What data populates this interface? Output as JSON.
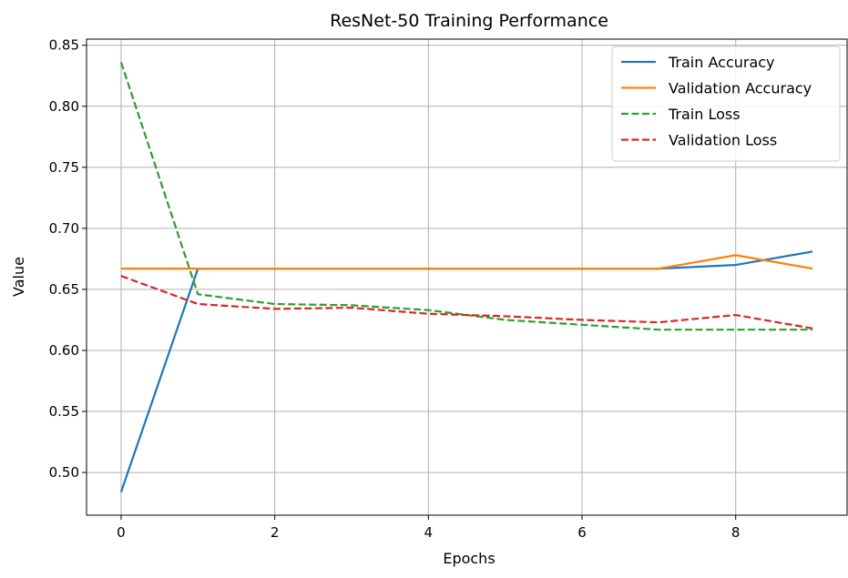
{
  "chart_data": {
    "type": "line",
    "title": "ResNet-50 Training Performance",
    "xlabel": "Epochs",
    "ylabel": "Value",
    "x": [
      0,
      1,
      2,
      3,
      4,
      5,
      6,
      7,
      8,
      9
    ],
    "xlim": [
      -0.45,
      9.45
    ],
    "ylim": [
      0.465,
      0.855
    ],
    "xticks": [
      0,
      2,
      4,
      6,
      8
    ],
    "yticks": [
      0.5,
      0.55,
      0.6,
      0.65,
      0.7,
      0.75,
      0.8,
      0.85
    ],
    "grid": true,
    "legend_position": "top-right",
    "series": [
      {
        "name": "Train Accuracy",
        "color": "#1f77b4",
        "style": "solid",
        "values": [
          0.484,
          0.667,
          0.667,
          0.667,
          0.667,
          0.667,
          0.667,
          0.667,
          0.67,
          0.681
        ]
      },
      {
        "name": "Validation Accuracy",
        "color": "#ff7f0e",
        "style": "solid",
        "values": [
          0.667,
          0.667,
          0.667,
          0.667,
          0.667,
          0.667,
          0.667,
          0.667,
          0.678,
          0.667
        ]
      },
      {
        "name": "Train Loss",
        "color": "#2ca02c",
        "style": "dashed",
        "values": [
          0.836,
          0.646,
          0.638,
          0.637,
          0.633,
          0.625,
          0.621,
          0.617,
          0.617,
          0.617
        ]
      },
      {
        "name": "Validation Loss",
        "color": "#d62728",
        "style": "dashed",
        "values": [
          0.661,
          0.638,
          0.634,
          0.635,
          0.63,
          0.628,
          0.625,
          0.623,
          0.629,
          0.618
        ]
      }
    ]
  }
}
